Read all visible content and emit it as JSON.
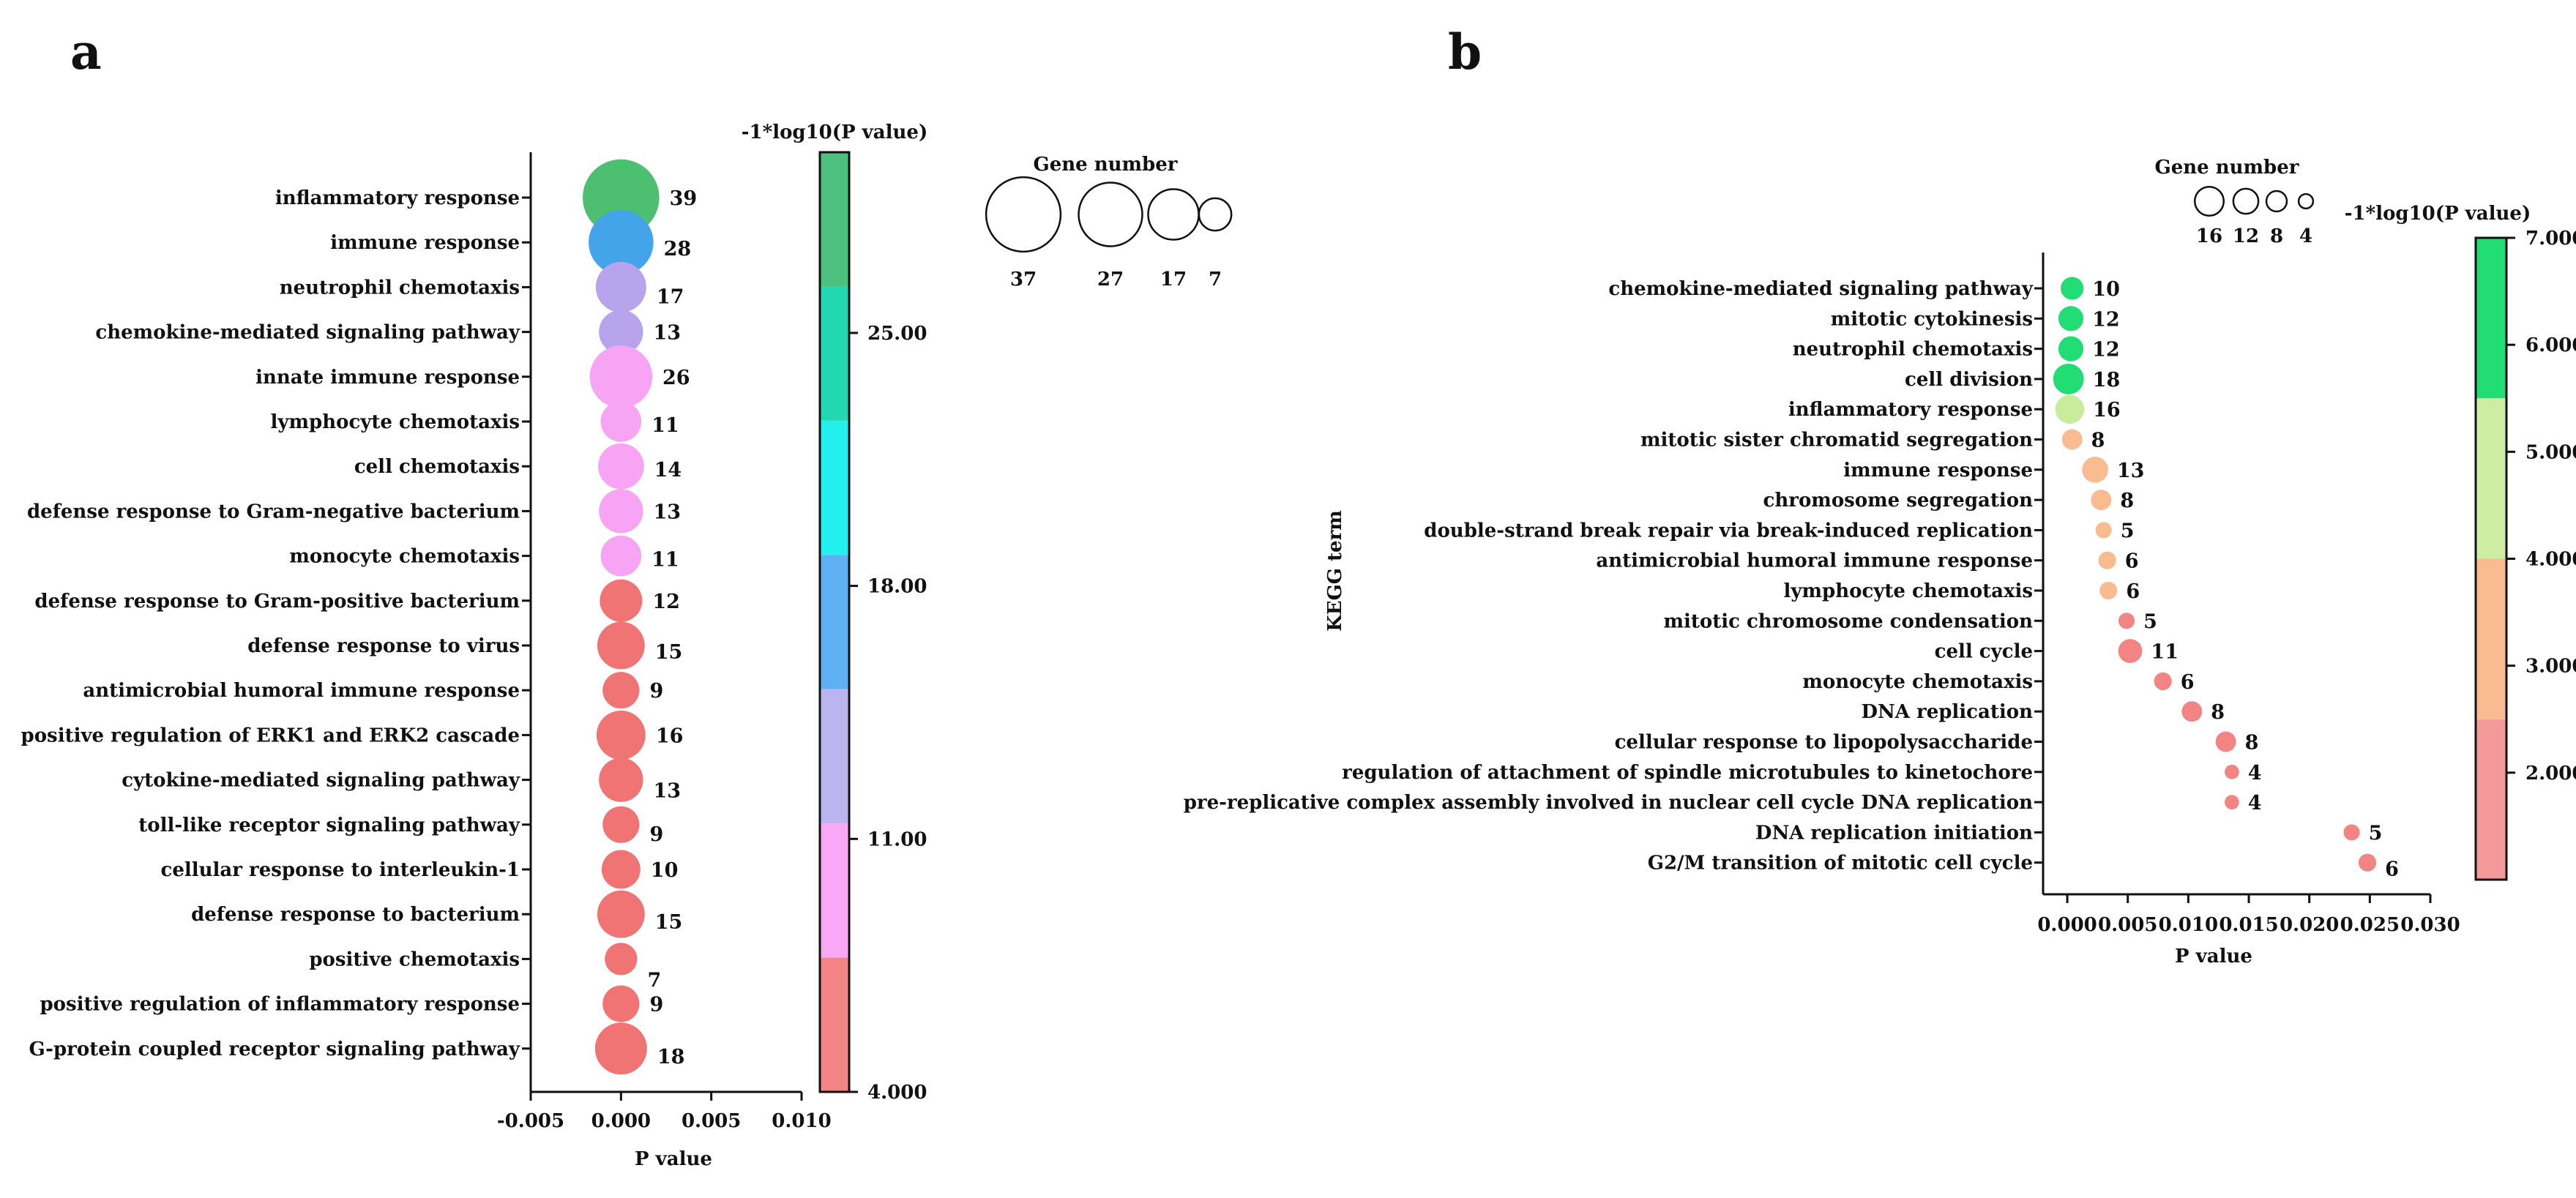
{
  "chart_data": [
    {
      "panel": "a",
      "type": "scatter",
      "xlabel": "P value",
      "ylabel": "",
      "xlim": [
        -0.005,
        0.01
      ],
      "xticks": [
        "-0.005",
        "0.000",
        "0.005",
        "0.010"
      ],
      "terms": [
        {
          "name": "inflammatory response",
          "p": 0.0,
          "count": 39,
          "color": "#4cc070"
        },
        {
          "name": "immune response",
          "p": 0.0,
          "count": 28,
          "color": "#44a4ea"
        },
        {
          "name": "neutrophil chemotaxis",
          "p": 0.0,
          "count": 17,
          "color": "#b8a4ec"
        },
        {
          "name": "chemokine-mediated signaling pathway",
          "p": 0.0,
          "count": 13,
          "color": "#b8a4ec"
        },
        {
          "name": "innate immune response",
          "p": 0.0,
          "count": 26,
          "color": "#f8a4f4"
        },
        {
          "name": "lymphocyte chemotaxis",
          "p": 0.0,
          "count": 11,
          "color": "#f8a4f4"
        },
        {
          "name": "cell chemotaxis",
          "p": 0.0,
          "count": 14,
          "color": "#f8a4f4"
        },
        {
          "name": "defense response to Gram-negative bacterium",
          "p": 0.0,
          "count": 13,
          "color": "#f8a4f4"
        },
        {
          "name": "monocyte chemotaxis",
          "p": 0.0,
          "count": 11,
          "color": "#f8a4f4"
        },
        {
          "name": "defense response to Gram-positive bacterium",
          "p": 0.0,
          "count": 12,
          "color": "#f07474"
        },
        {
          "name": "defense response to virus",
          "p": 0.0,
          "count": 15,
          "color": "#f07474"
        },
        {
          "name": "antimicrobial humoral immune response",
          "p": 0.0,
          "count": 9,
          "color": "#f07474"
        },
        {
          "name": "positive regulation of ERK1 and ERK2 cascade",
          "p": 0.0,
          "count": 16,
          "color": "#f07474"
        },
        {
          "name": "cytokine-mediated signaling pathway",
          "p": 0.0,
          "count": 13,
          "color": "#f07474"
        },
        {
          "name": "toll-like receptor signaling pathway",
          "p": 0.0,
          "count": 9,
          "color": "#f07474"
        },
        {
          "name": "cellular response to interleukin-1",
          "p": 0.0,
          "count": 10,
          "color": "#f07474"
        },
        {
          "name": "defense response to bacterium",
          "p": 0.0,
          "count": 15,
          "color": "#f07474"
        },
        {
          "name": "positive chemotaxis",
          "p": 0.0,
          "count": 7,
          "color": "#f07474"
        },
        {
          "name": "positive regulation of inflammatory response",
          "p": 0.0,
          "count": 9,
          "color": "#f07474"
        },
        {
          "name": "G-protein coupled receptor signaling pathway",
          "p": 0.0,
          "count": 18,
          "color": "#f07474"
        }
      ],
      "colorbar": {
        "title": "-1*log10(P value)",
        "range": [
          4.0,
          30.0
        ],
        "ticks": [
          "4.000",
          "11.00",
          "18.00",
          "25.00"
        ],
        "colors": [
          "#f28484",
          "#f8a8f4",
          "#bcb4ee",
          "#5eb0f2",
          "#22f0ee",
          "#22d8b0",
          "#4cc07c"
        ]
      },
      "size_legend": {
        "title": "Gene number",
        "values": [
          "37",
          "27",
          "17",
          "7"
        ]
      }
    },
    {
      "panel": "b",
      "type": "scatter",
      "xlabel": "P value",
      "ylabel": "KEGG term",
      "xlim": [
        -0.002,
        0.03
      ],
      "xticks": [
        "0.000",
        "0.005",
        "0.010",
        "0.015",
        "0.020",
        "0.025",
        "0.030"
      ],
      "terms": [
        {
          "name": "chemokine-mediated signaling pathway",
          "p": 0.0004,
          "count": 10,
          "color": "#22dc74"
        },
        {
          "name": "mitotic cytokinesis",
          "p": 0.0003,
          "count": 12,
          "color": "#22dc74"
        },
        {
          "name": "neutrophil chemotaxis",
          "p": 0.0003,
          "count": 12,
          "color": "#22dc74"
        },
        {
          "name": "cell division",
          "p": 0.0001,
          "count": 18,
          "color": "#22dc74"
        },
        {
          "name": "inflammatory response",
          "p": 0.0002,
          "count": 16,
          "color": "#c8ec9c"
        },
        {
          "name": "mitotic sister chromatid segregation",
          "p": 0.0004,
          "count": 8,
          "color": "#f8bc90"
        },
        {
          "name": "immune response",
          "p": 0.0023,
          "count": 13,
          "color": "#f8bc90"
        },
        {
          "name": "chromosome segregation",
          "p": 0.0028,
          "count": 8,
          "color": "#f8bc90"
        },
        {
          "name": "double-strand break repair via break-induced replication",
          "p": 0.003,
          "count": 5,
          "color": "#f8bc90"
        },
        {
          "name": "antimicrobial humoral immune response",
          "p": 0.0033,
          "count": 6,
          "color": "#f8bc90"
        },
        {
          "name": "lymphocyte chemotaxis",
          "p": 0.0034,
          "count": 6,
          "color": "#f8bc90"
        },
        {
          "name": "mitotic chromosome condensation",
          "p": 0.0049,
          "count": 5,
          "color": "#f28484"
        },
        {
          "name": "cell cycle",
          "p": 0.0052,
          "count": 11,
          "color": "#f28484"
        },
        {
          "name": "monocyte chemotaxis",
          "p": 0.0079,
          "count": 6,
          "color": "#f28484"
        },
        {
          "name": "DNA replication",
          "p": 0.0103,
          "count": 8,
          "color": "#f28484"
        },
        {
          "name": "cellular response to lipopolysaccharide",
          "p": 0.0131,
          "count": 8,
          "color": "#f28484"
        },
        {
          "name": "regulation of attachment of spindle microtubules to kinetochore",
          "p": 0.0136,
          "count": 4,
          "color": "#f28484"
        },
        {
          "name": "pre-replicative complex assembly involved in nuclear cell cycle DNA replication",
          "p": 0.0136,
          "count": 4,
          "color": "#f28484"
        },
        {
          "name": "DNA replication initiation",
          "p": 0.0235,
          "count": 5,
          "color": "#f28484"
        },
        {
          "name": "G2/M transition of mitotic cell cycle",
          "p": 0.0248,
          "count": 6,
          "color": "#f28484"
        }
      ],
      "colorbar": {
        "title": "-1*log10(P value)",
        "range": [
          1.0,
          7.0
        ],
        "ticks": [
          "2.000",
          "3.000",
          "4.000",
          "5.000",
          "6.000",
          "7.000"
        ],
        "colors": [
          "#f49a9a",
          "#f8bc90",
          "#cdeea2",
          "#22dc74"
        ]
      },
      "size_legend": {
        "title": "Gene number",
        "values": [
          "16",
          "12",
          "8",
          "4"
        ]
      }
    }
  ]
}
